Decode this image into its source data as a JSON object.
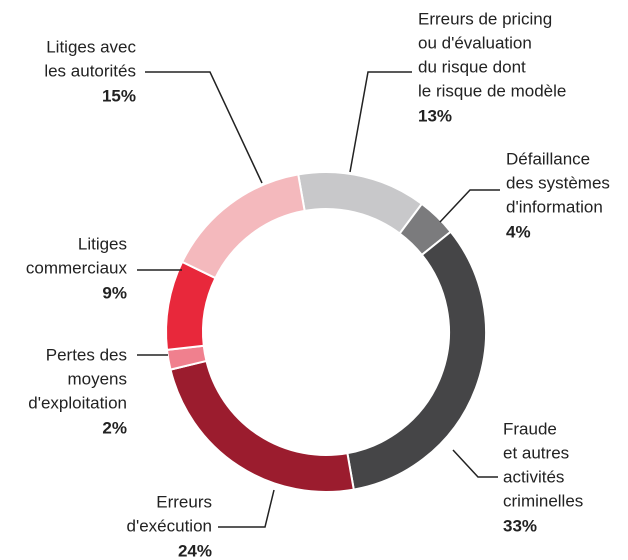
{
  "chart_data": {
    "type": "donut",
    "categories": [
      [
        "Erreurs de pricing",
        "ou d'évaluation",
        "du risque dont",
        "le risque de modèle"
      ],
      [
        "Défaillance",
        "des systèmes",
        "d'information"
      ],
      [
        "Fraude",
        "et autres",
        "activités",
        "criminelles"
      ],
      [
        "Erreurs",
        "d'exécution"
      ],
      [
        "Pertes des",
        "moyens",
        "d'exploitation"
      ],
      [
        "Litiges",
        "commerciaux"
      ],
      [
        "Litiges avec",
        "les autorités"
      ]
    ],
    "values": [
      13,
      4,
      33,
      24,
      2,
      9,
      15
    ],
    "value_labels": [
      "13%",
      "4%",
      "33%",
      "24%",
      "2%",
      "9%",
      "15%"
    ],
    "colors": [
      "#c8c8ca",
      "#7b7b7d",
      "#454547",
      "#9b1c2e",
      "#f0808e",
      "#e8283b",
      "#f4b9bd"
    ]
  }
}
